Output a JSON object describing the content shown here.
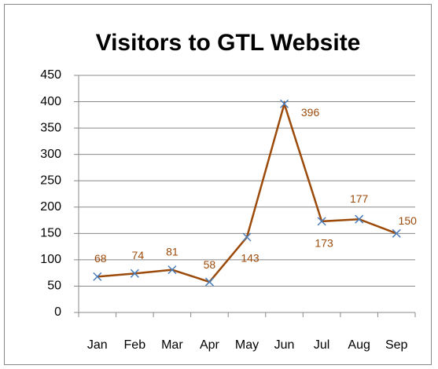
{
  "chart_data": {
    "type": "line",
    "title": "Visitors to GTL Website",
    "categories": [
      "Jan",
      "Feb",
      "Mar",
      "Apr",
      "May",
      "Jun",
      "Jul",
      "Aug",
      "Sep"
    ],
    "values": [
      68,
      74,
      81,
      58,
      143,
      396,
      173,
      177,
      150
    ],
    "color": "#9c4a0a",
    "marker_color": "#4a7ebb",
    "label_color": "#9c4a0a",
    "ylim": [
      0,
      450
    ],
    "yticks": [
      0,
      50,
      100,
      150,
      200,
      250,
      300,
      350,
      400,
      450
    ],
    "grid": true
  }
}
